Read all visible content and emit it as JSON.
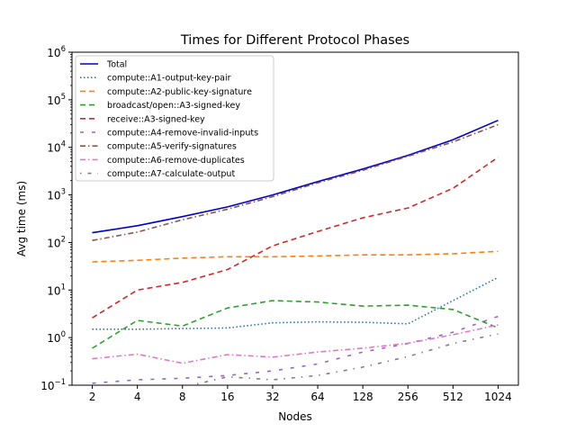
{
  "chart_data": {
    "type": "line",
    "title": "Times for Different Protocol Phases",
    "xlabel": "Nodes",
    "ylabel": "Avg time (ms)",
    "x_scale": "log2",
    "y_scale": "log10",
    "x": [
      2,
      4,
      8,
      16,
      32,
      64,
      128,
      256,
      512,
      1024
    ],
    "x_tick_labels": [
      "2",
      "4",
      "8",
      "16",
      "32",
      "64",
      "128",
      "256",
      "512",
      "1024"
    ],
    "ylim": [
      0.1,
      1000000
    ],
    "y_ticks": [
      {
        "value": 0.1,
        "base": "10",
        "exp": "−1"
      },
      {
        "value": 1,
        "base": "10",
        "exp": "0"
      },
      {
        "value": 10,
        "base": "10",
        "exp": "1"
      },
      {
        "value": 100,
        "base": "10",
        "exp": "2"
      },
      {
        "value": 1000,
        "base": "10",
        "exp": "3"
      },
      {
        "value": 10000,
        "base": "10",
        "exp": "4"
      },
      {
        "value": 100000,
        "base": "10",
        "exp": "5"
      },
      {
        "value": 1000000,
        "base": "10",
        "exp": "6"
      }
    ],
    "grid": false,
    "legend_position": "top-left",
    "series": [
      {
        "name": "Total",
        "color": "#0000cc",
        "style": "solid",
        "values": [
          160,
          225,
          350,
          560,
          1000,
          1900,
          3500,
          6800,
          14500,
          37000
        ]
      },
      {
        "name": "compute::A1-output-key-pair",
        "color": "#1f77b4",
        "style": "dotted",
        "values": [
          1.5,
          1.5,
          1.55,
          1.6,
          2.05,
          2.15,
          2.1,
          1.95,
          6.0,
          18.5
        ]
      },
      {
        "name": "compute::A2-public-key-signature",
        "color": "#ff7f0e",
        "style": "dashed",
        "values": [
          39,
          42,
          47,
          50,
          50,
          52,
          55,
          55,
          58,
          65
        ]
      },
      {
        "name": "broadcast/open::A3-signed-key",
        "color": "#2ca02c",
        "style": "dashed",
        "values": [
          0.6,
          2.3,
          1.75,
          4.2,
          6.0,
          5.6,
          4.6,
          4.8,
          3.9,
          1.6
        ]
      },
      {
        "name": "receive::A3-signed-key",
        "color": "#d62728",
        "style": "dashed",
        "values": [
          2.6,
          10,
          14.5,
          27,
          85,
          170,
          330,
          530,
          1380,
          6200
        ]
      },
      {
        "name": "compute::A4-remove-invalid-inputs",
        "color": "#9467bd",
        "style": "loosedash",
        "values": [
          0.11,
          0.13,
          0.14,
          0.16,
          0.2,
          0.28,
          0.5,
          0.75,
          1.3,
          2.8
        ]
      },
      {
        "name": "compute::A5-verify-signatures",
        "color": "#8c564b",
        "style": "dashdot",
        "values": [
          110,
          165,
          300,
          500,
          920,
          1800,
          3300,
          6500,
          13000,
          30000
        ]
      },
      {
        "name": "compute::A6-remove-duplicates",
        "color": "#e377c2",
        "style": "dashdot",
        "values": [
          0.36,
          0.45,
          0.29,
          0.44,
          0.39,
          0.5,
          0.6,
          0.76,
          1.15,
          1.85
        ]
      },
      {
        "name": "compute::A7-calculate-output",
        "color": "#7f7f7f",
        "style": "sparsedashdot",
        "values": [
          0.075,
          0.08,
          0.09,
          0.15,
          0.13,
          0.16,
          0.24,
          0.4,
          0.75,
          1.2
        ]
      }
    ]
  }
}
